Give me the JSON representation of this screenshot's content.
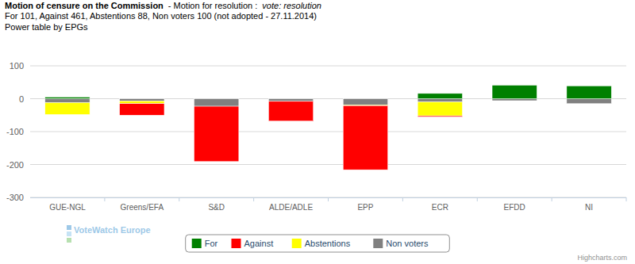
{
  "chart_data": {
    "type": "bar",
    "stacked": true,
    "title": "Motion of censure on the Commission",
    "subtitle": "For 101, Against 461, Abstentions 88, Non voters 100 (not adopted - 27.11.2014)",
    "annotations": [
      "- Motion for resolution :",
      "vote: resolution",
      "Power table by EPGs",
      "VoteWatch Europe",
      "Highcharts.com"
    ],
    "categories": [
      "GUE-NGL",
      "Greens/EFA",
      "S&D",
      "ALDE/ADLE",
      "EPP",
      "ECR",
      "EFDD",
      "NI"
    ],
    "series": [
      {
        "name": "For",
        "color": "#008000",
        "values": [
          5,
          0,
          0,
          0,
          0,
          16,
          41,
          39
        ]
      },
      {
        "name": "Against",
        "color": "#ff0000",
        "values": [
          0,
          -35,
          -168,
          -60,
          -195,
          -3,
          0,
          0
        ]
      },
      {
        "name": "Abstentions",
        "color": "#ffff00",
        "values": [
          -36,
          -8,
          0,
          0,
          -2,
          -42,
          0,
          0
        ]
      },
      {
        "name": "Non voters",
        "color": "#808080",
        "values": [
          -12,
          -7,
          -23,
          -8,
          -19,
          -10,
          -6,
          -15
        ]
      }
    ],
    "ylim": [
      -300,
      100
    ],
    "yticks": [
      -300,
      -200,
      -100,
      0,
      100
    ],
    "grid": true,
    "legend": "bottom"
  }
}
